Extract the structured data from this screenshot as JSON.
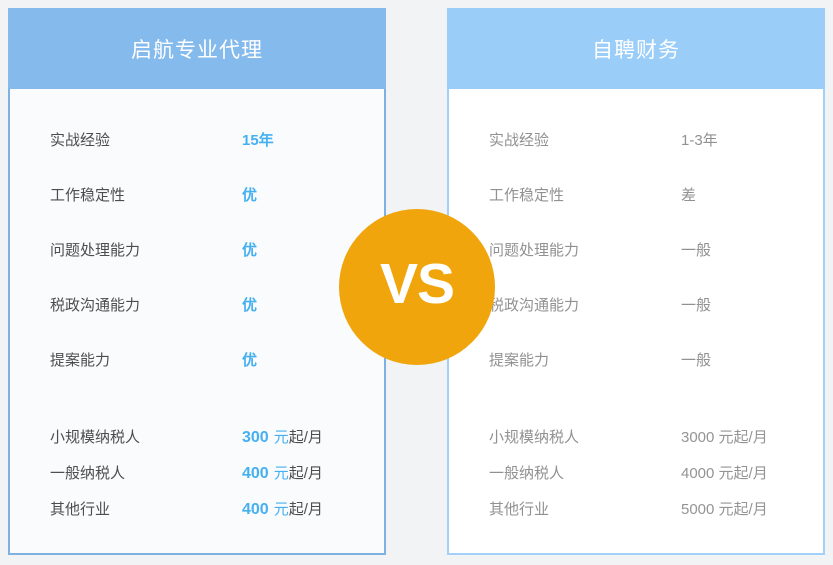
{
  "colors": {
    "page_bg": "#f1f3f4",
    "left_header_bg": "#85baed",
    "right_header_bg": "#9acdf8",
    "left_border": "#7fb0e2",
    "right_border": "#a2d0f8",
    "accent_blue_text": "#45b0f0",
    "vs_orange": "#f0a50c"
  },
  "vs_badge": {
    "text": "VS"
  },
  "left": {
    "title": "启航专业代理",
    "capabilities": [
      {
        "label": "实战经验",
        "value": "15年"
      },
      {
        "label": "工作稳定性",
        "value": "优"
      },
      {
        "label": "问题处理能力",
        "value": "优"
      },
      {
        "label": "税政沟通能力",
        "value": "优"
      },
      {
        "label": "提案能力",
        "value": "优"
      }
    ],
    "prices": [
      {
        "label": "小规模纳税人",
        "amount": "300",
        "unit": "元",
        "suffix": "起/月"
      },
      {
        "label": "一般纳税人",
        "amount": "400",
        "unit": "元",
        "suffix": "起/月"
      },
      {
        "label": "其他行业",
        "amount": "400",
        "unit": "元",
        "suffix": "起/月"
      }
    ]
  },
  "right": {
    "title": "自聘财务",
    "capabilities": [
      {
        "label": "实战经验",
        "value": "1-3年"
      },
      {
        "label": "工作稳定性",
        "value": "差"
      },
      {
        "label": "问题处理能力",
        "value": "一般"
      },
      {
        "label": "税政沟通能力",
        "value": "一般"
      },
      {
        "label": "提案能力",
        "value": "一般"
      }
    ],
    "prices": [
      {
        "label": "小规模纳税人",
        "value": "3000 元起/月"
      },
      {
        "label": "一般纳税人",
        "value": "4000 元起/月"
      },
      {
        "label": "其他行业",
        "value": "5000 元起/月"
      }
    ]
  },
  "chart_data": {
    "type": "table",
    "title": "启航专业代理 VS 自聘财务",
    "categories": [
      "实战经验",
      "工作稳定性",
      "问题处理能力",
      "税政沟通能力",
      "提案能力",
      "小规模纳税人",
      "一般纳税人",
      "其他行业"
    ],
    "series": [
      {
        "name": "启航专业代理",
        "values": [
          "15年",
          "优",
          "优",
          "优",
          "优",
          "300 元起/月",
          "400 元起/月",
          "400 元起/月"
        ]
      },
      {
        "name": "自聘财务",
        "values": [
          "1-3年",
          "差",
          "一般",
          "一般",
          "一般",
          "3000 元起/月",
          "4000 元起/月",
          "5000 元起/月"
        ]
      }
    ],
    "legend_position": "column-headers",
    "grid": false
  }
}
